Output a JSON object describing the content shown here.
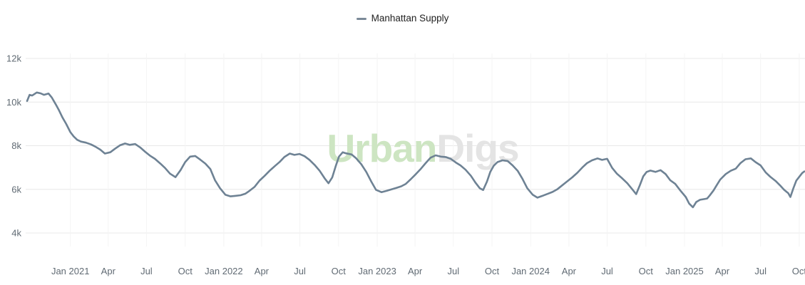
{
  "legend": {
    "label": "Manhattan Supply"
  },
  "watermark": {
    "part1": "Urban",
    "part2": "Digs",
    "color1": "#cde5c2",
    "color2": "#e4e4e4"
  },
  "colors": {
    "line": "#6e8294",
    "legend_marker": "#7b8a98",
    "grid_horizontal": "#e8e8e8",
    "grid_vertical": "#f4f4f4",
    "axis_text": "#606a73",
    "background": "#ffffff"
  },
  "chart_data": {
    "type": "line",
    "title": "",
    "xlabel": "",
    "ylabel": "",
    "legend_position": "top-center",
    "grid": "on",
    "ylim": [
      4000,
      12000
    ],
    "y_ticks": [
      {
        "value": 12000,
        "label": "12k"
      },
      {
        "value": 10000,
        "label": "10k"
      },
      {
        "value": 8000,
        "label": "8k"
      },
      {
        "value": 6000,
        "label": "6k"
      },
      {
        "value": 4000,
        "label": "4k"
      }
    ],
    "x_ticks": [
      {
        "date": "2021-01-01",
        "label": "Jan 2021"
      },
      {
        "date": "2021-04-01",
        "label": "Apr"
      },
      {
        "date": "2021-07-01",
        "label": "Jul"
      },
      {
        "date": "2021-10-01",
        "label": "Oct"
      },
      {
        "date": "2022-01-01",
        "label": "Jan 2022"
      },
      {
        "date": "2022-04-01",
        "label": "Apr"
      },
      {
        "date": "2022-07-01",
        "label": "Jul"
      },
      {
        "date": "2022-10-01",
        "label": "Oct"
      },
      {
        "date": "2023-01-01",
        "label": "Jan 2023"
      },
      {
        "date": "2023-04-01",
        "label": "Apr"
      },
      {
        "date": "2023-07-01",
        "label": "Jul"
      },
      {
        "date": "2023-10-01",
        "label": "Oct"
      },
      {
        "date": "2024-01-01",
        "label": "Jan 2024"
      },
      {
        "date": "2024-04-01",
        "label": "Apr"
      },
      {
        "date": "2024-07-01",
        "label": "Jul"
      },
      {
        "date": "2024-10-01",
        "label": "Oct"
      },
      {
        "date": "2025-01-01",
        "label": "Jan 2025"
      },
      {
        "date": "2025-04-01",
        "label": "Apr"
      },
      {
        "date": "2025-07-01",
        "label": "Jul"
      },
      {
        "date": "2025-10-01",
        "label": "Oct"
      }
    ],
    "series": [
      {
        "name": "Manhattan Supply",
        "color": "#6e8294",
        "points": [
          [
            "2020-09-20",
            10050
          ],
          [
            "2020-09-26",
            10330
          ],
          [
            "2020-10-02",
            10300
          ],
          [
            "2020-10-13",
            10440
          ],
          [
            "2020-10-22",
            10400
          ],
          [
            "2020-10-30",
            10330
          ],
          [
            "2020-11-10",
            10390
          ],
          [
            "2020-11-18",
            10200
          ],
          [
            "2020-11-27",
            9900
          ],
          [
            "2020-12-05",
            9620
          ],
          [
            "2020-12-13",
            9300
          ],
          [
            "2020-12-22",
            9000
          ],
          [
            "2021-01-01",
            8620
          ],
          [
            "2021-01-09",
            8420
          ],
          [
            "2021-01-17",
            8270
          ],
          [
            "2021-01-26",
            8190
          ],
          [
            "2021-02-07",
            8140
          ],
          [
            "2021-02-19",
            8060
          ],
          [
            "2021-03-01",
            7960
          ],
          [
            "2021-03-13",
            7820
          ],
          [
            "2021-03-24",
            7640
          ],
          [
            "2021-04-06",
            7700
          ],
          [
            "2021-04-17",
            7860
          ],
          [
            "2021-04-29",
            8020
          ],
          [
            "2021-05-11",
            8100
          ],
          [
            "2021-05-22",
            8040
          ],
          [
            "2021-06-04",
            8080
          ],
          [
            "2021-06-16",
            7920
          ],
          [
            "2021-06-28",
            7720
          ],
          [
            "2021-07-09",
            7550
          ],
          [
            "2021-07-21",
            7400
          ],
          [
            "2021-08-03",
            7180
          ],
          [
            "2021-08-14",
            6980
          ],
          [
            "2021-08-26",
            6720
          ],
          [
            "2021-09-08",
            6560
          ],
          [
            "2021-09-20",
            6880
          ],
          [
            "2021-10-01",
            7250
          ],
          [
            "2021-10-13",
            7500
          ],
          [
            "2021-10-25",
            7530
          ],
          [
            "2021-11-06",
            7360
          ],
          [
            "2021-11-18",
            7180
          ],
          [
            "2021-11-30",
            6930
          ],
          [
            "2021-12-11",
            6420
          ],
          [
            "2021-12-23",
            6050
          ],
          [
            "2022-01-05",
            5750
          ],
          [
            "2022-01-17",
            5680
          ],
          [
            "2022-01-28",
            5700
          ],
          [
            "2022-02-10",
            5730
          ],
          [
            "2022-02-21",
            5800
          ],
          [
            "2022-03-03",
            5930
          ],
          [
            "2022-03-15",
            6110
          ],
          [
            "2022-03-27",
            6400
          ],
          [
            "2022-04-08",
            6620
          ],
          [
            "2022-04-20",
            6850
          ],
          [
            "2022-05-02",
            7060
          ],
          [
            "2022-05-14",
            7260
          ],
          [
            "2022-05-25",
            7480
          ],
          [
            "2022-06-07",
            7640
          ],
          [
            "2022-06-18",
            7580
          ],
          [
            "2022-06-30",
            7620
          ],
          [
            "2022-07-12",
            7520
          ],
          [
            "2022-07-24",
            7350
          ],
          [
            "2022-08-05",
            7120
          ],
          [
            "2022-08-17",
            6850
          ],
          [
            "2022-08-29",
            6500
          ],
          [
            "2022-09-07",
            6280
          ],
          [
            "2022-09-16",
            6550
          ],
          [
            "2022-09-24",
            7050
          ],
          [
            "2022-10-02",
            7500
          ],
          [
            "2022-10-11",
            7700
          ],
          [
            "2022-10-19",
            7650
          ],
          [
            "2022-11-01",
            7600
          ],
          [
            "2022-11-12",
            7420
          ],
          [
            "2022-11-24",
            7150
          ],
          [
            "2022-12-06",
            6800
          ],
          [
            "2022-12-18",
            6350
          ],
          [
            "2022-12-29",
            5980
          ],
          [
            "2023-01-11",
            5870
          ],
          [
            "2023-01-23",
            5930
          ],
          [
            "2023-02-04",
            6000
          ],
          [
            "2023-02-16",
            6070
          ],
          [
            "2023-02-27",
            6140
          ],
          [
            "2023-03-10",
            6250
          ],
          [
            "2023-03-21",
            6450
          ],
          [
            "2023-04-03",
            6700
          ],
          [
            "2023-04-15",
            6950
          ],
          [
            "2023-04-26",
            7200
          ],
          [
            "2023-05-08",
            7450
          ],
          [
            "2023-05-20",
            7560
          ],
          [
            "2023-06-01",
            7500
          ],
          [
            "2023-06-13",
            7480
          ],
          [
            "2023-06-25",
            7400
          ],
          [
            "2023-07-07",
            7230
          ],
          [
            "2023-07-18",
            7100
          ],
          [
            "2023-07-30",
            6900
          ],
          [
            "2023-08-12",
            6620
          ],
          [
            "2023-08-23",
            6300
          ],
          [
            "2023-09-02",
            6050
          ],
          [
            "2023-09-10",
            5970
          ],
          [
            "2023-09-19",
            6350
          ],
          [
            "2023-09-27",
            6800
          ],
          [
            "2023-10-05",
            7080
          ],
          [
            "2023-10-14",
            7250
          ],
          [
            "2023-10-26",
            7330
          ],
          [
            "2023-11-07",
            7300
          ],
          [
            "2023-11-19",
            7100
          ],
          [
            "2023-12-01",
            6850
          ],
          [
            "2023-12-12",
            6500
          ],
          [
            "2023-12-24",
            6050
          ],
          [
            "2024-01-06",
            5750
          ],
          [
            "2024-01-17",
            5620
          ],
          [
            "2024-01-29",
            5700
          ],
          [
            "2024-02-11",
            5800
          ],
          [
            "2024-02-22",
            5880
          ],
          [
            "2024-03-04",
            6000
          ],
          [
            "2024-03-16",
            6180
          ],
          [
            "2024-03-27",
            6350
          ],
          [
            "2024-04-09",
            6550
          ],
          [
            "2024-04-21",
            6760
          ],
          [
            "2024-05-03",
            7000
          ],
          [
            "2024-05-14",
            7200
          ],
          [
            "2024-05-26",
            7330
          ],
          [
            "2024-06-08",
            7420
          ],
          [
            "2024-06-19",
            7350
          ],
          [
            "2024-07-01",
            7400
          ],
          [
            "2024-07-13",
            6980
          ],
          [
            "2024-07-24",
            6720
          ],
          [
            "2024-08-06",
            6500
          ],
          [
            "2024-08-18",
            6280
          ],
          [
            "2024-09-01",
            5950
          ],
          [
            "2024-09-08",
            5780
          ],
          [
            "2024-09-17",
            6200
          ],
          [
            "2024-09-25",
            6600
          ],
          [
            "2024-10-03",
            6800
          ],
          [
            "2024-10-12",
            6860
          ],
          [
            "2024-10-24",
            6800
          ],
          [
            "2024-11-05",
            6880
          ],
          [
            "2024-11-17",
            6700
          ],
          [
            "2024-11-28",
            6420
          ],
          [
            "2024-12-10",
            6250
          ],
          [
            "2024-12-22",
            5950
          ],
          [
            "2025-01-04",
            5650
          ],
          [
            "2025-01-12",
            5350
          ],
          [
            "2025-01-21",
            5180
          ],
          [
            "2025-01-29",
            5420
          ],
          [
            "2025-02-07",
            5520
          ],
          [
            "2025-02-16",
            5550
          ],
          [
            "2025-02-24",
            5580
          ],
          [
            "2025-03-02",
            5720
          ],
          [
            "2025-03-11",
            5950
          ],
          [
            "2025-03-19",
            6200
          ],
          [
            "2025-03-27",
            6450
          ],
          [
            "2025-04-09",
            6700
          ],
          [
            "2025-04-21",
            6850
          ],
          [
            "2025-05-03",
            6950
          ],
          [
            "2025-05-14",
            7200
          ],
          [
            "2025-05-26",
            7380
          ],
          [
            "2025-06-08",
            7420
          ],
          [
            "2025-06-19",
            7250
          ],
          [
            "2025-07-01",
            7100
          ],
          [
            "2025-07-13",
            6780
          ],
          [
            "2025-07-24",
            6580
          ],
          [
            "2025-08-06",
            6380
          ],
          [
            "2025-08-18",
            6150
          ],
          [
            "2025-08-26",
            5980
          ],
          [
            "2025-09-05",
            5820
          ],
          [
            "2025-09-10",
            5650
          ],
          [
            "2025-09-17",
            6050
          ],
          [
            "2025-09-24",
            6400
          ],
          [
            "2025-10-02",
            6600
          ],
          [
            "2025-10-08",
            6750
          ],
          [
            "2025-10-13",
            6820
          ]
        ]
      }
    ]
  }
}
